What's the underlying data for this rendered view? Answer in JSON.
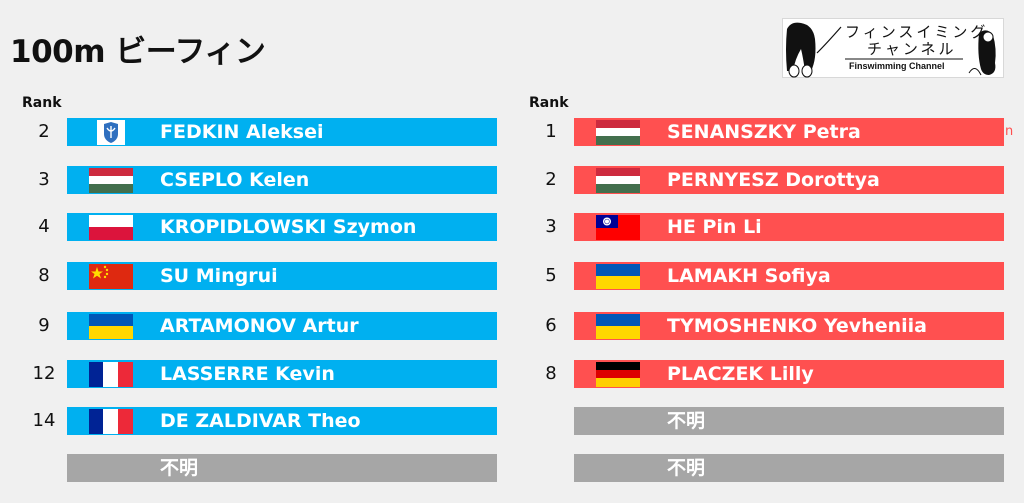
{
  "title": "100m ビーフィン",
  "logo": {
    "line1": "フィンスイミング",
    "line2": "チャンネル",
    "line3": "Finswimming Channel"
  },
  "rank_header": "Rank",
  "left_column": [
    {
      "rank": "2",
      "name": "FEDKIN Aleksei",
      "flag": "neutral-emblem"
    },
    {
      "rank": "3",
      "name": "CSEPLO Kelen",
      "flag": "hungary"
    },
    {
      "rank": "4",
      "name": "KROPIDLOWSKI Szymon",
      "flag": "poland"
    },
    {
      "rank": "8",
      "name": "SU Mingrui",
      "flag": "china"
    },
    {
      "rank": "9",
      "name": "ARTAMONOV Artur",
      "flag": "ukraine"
    },
    {
      "rank": "12",
      "name": "LASSERRE Kevin",
      "flag": "france"
    },
    {
      "rank": "14",
      "name": "DE ZALDIVAR Theo",
      "flag": "france"
    },
    {
      "rank": "",
      "name": "不明",
      "flag": ""
    }
  ],
  "right_column": [
    {
      "rank": "1",
      "name": "SENANSZKY Petra",
      "flag": "hungary"
    },
    {
      "rank": "2",
      "name": "PERNYESZ Dorottya",
      "flag": "hungary"
    },
    {
      "rank": "3",
      "name": "HE Pin Li",
      "flag": "taiwan"
    },
    {
      "rank": "5",
      "name": "LAMAKH Sofiya",
      "flag": "ukraine"
    },
    {
      "rank": "6",
      "name": "TYMOSHENKO Yevheniia",
      "flag": "ukraine"
    },
    {
      "rank": "8",
      "name": "PLACZEK Lilly",
      "flag": "germany"
    },
    {
      "rank": "",
      "name": "不明",
      "flag": ""
    },
    {
      "rank": "",
      "name": "不明",
      "flag": ""
    }
  ],
  "stray_mark": "n",
  "colors": {
    "men_bar": "#00b0f0",
    "women_bar": "#ff5050",
    "unknown_bar": "#a6a6a6"
  }
}
